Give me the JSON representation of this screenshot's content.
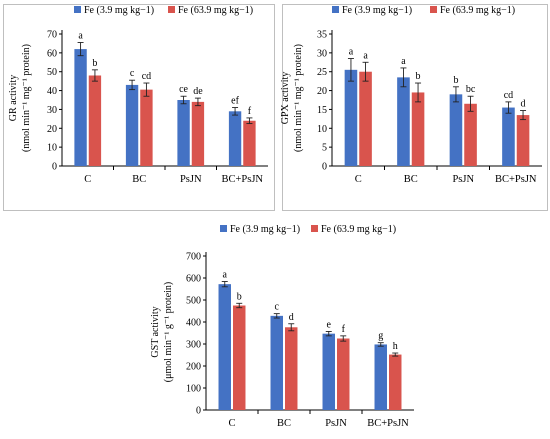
{
  "colors": {
    "fe_low": "#4472C4",
    "fe_high": "#D9544D"
  },
  "legend": [
    "Fe (3.9 mg kg−1)",
    "Fe (63.9 mg kg−1)"
  ],
  "chart_data": [
    {
      "type": "bar",
      "ylabel_line1": "GR activity",
      "ylabel_line2": "(nmol min⁻¹ mg⁻¹ protein)",
      "categories": [
        "C",
        "BC",
        "PsJN",
        "BC+PsJN"
      ],
      "ylim": [
        0,
        70
      ],
      "yticks": [
        0,
        10,
        20,
        30,
        40,
        50,
        60,
        70
      ],
      "series": [
        {
          "name": "Fe (3.9 mg kg−1)",
          "values": [
            62,
            43,
            35,
            29
          ],
          "errors": [
            3.5,
            2.5,
            2,
            2
          ],
          "labels": [
            "a",
            "c",
            "ce",
            "ef"
          ]
        },
        {
          "name": "Fe (63.9 mg kg−1)",
          "values": [
            48,
            40.5,
            34,
            24
          ],
          "errors": [
            3,
            3.5,
            2,
            1.5
          ],
          "labels": [
            "b",
            "cd",
            "de",
            "f"
          ]
        }
      ],
      "legend_position": "top"
    },
    {
      "type": "bar",
      "ylabel_line1": "GPX activity",
      "ylabel_line2": "(nmol min⁻¹ mg⁻¹ protein)",
      "categories": [
        "C",
        "BC",
        "PsJN",
        "BC+PsJN"
      ],
      "ylim": [
        0,
        35
      ],
      "yticks": [
        0,
        5,
        10,
        15,
        20,
        25,
        30,
        35
      ],
      "series": [
        {
          "name": "Fe (3.9 mg kg−1)",
          "values": [
            25.5,
            23.5,
            19,
            15.5
          ],
          "errors": [
            3,
            2.5,
            2,
            1.5
          ],
          "labels": [
            "a",
            "a",
            "b",
            "cd"
          ]
        },
        {
          "name": "Fe (63.9 mg kg−1)",
          "values": [
            25,
            19.5,
            16.5,
            13.5
          ],
          "errors": [
            2.5,
            2.5,
            2,
            1.2
          ],
          "labels": [
            "a",
            "b",
            "bc",
            "d"
          ]
        }
      ],
      "legend_position": "top"
    },
    {
      "type": "bar",
      "ylabel_line1": "GST activity",
      "ylabel_line2": "(μmol min⁻¹ g⁻¹ protein)",
      "categories": [
        "C",
        "BC",
        "PsJN",
        "BC+PsJN"
      ],
      "ylim": [
        0,
        700
      ],
      "yticks": [
        0,
        100,
        200,
        300,
        400,
        500,
        600,
        700
      ],
      "series": [
        {
          "name": "Fe (3.9 mg kg−1)",
          "values": [
            572,
            428,
            347,
            298
          ],
          "errors": [
            12,
            10,
            10,
            8
          ],
          "labels": [
            "a",
            "c",
            "e",
            "g"
          ]
        },
        {
          "name": "Fe (63.9 mg kg−1)",
          "values": [
            475,
            376,
            325,
            252
          ],
          "errors": [
            10,
            16,
            12,
            7
          ],
          "labels": [
            "b",
            "d",
            "f",
            "h"
          ]
        }
      ],
      "legend_position": "top"
    }
  ]
}
